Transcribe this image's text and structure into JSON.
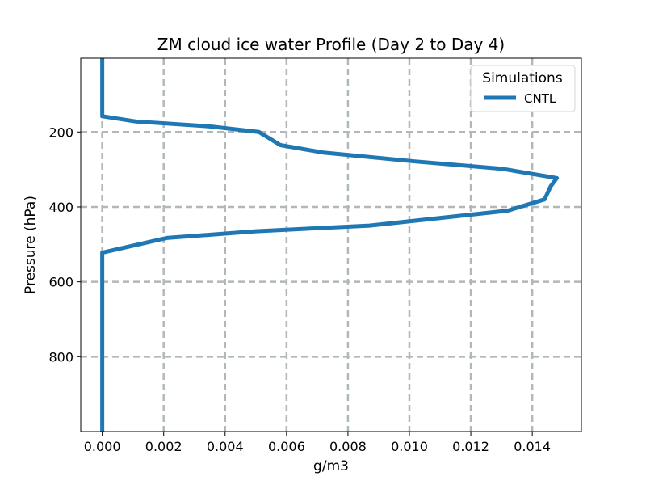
{
  "chart_data": {
    "type": "line",
    "title": "ZM cloud ice water Profile (Day 2 to Day 4)",
    "xlabel": "g/m3",
    "ylabel": "Pressure (hPa)",
    "xlim": [
      -0.0007,
      0.0156
    ],
    "ylim": [
      1000,
      3
    ],
    "y_inverted": true,
    "grid": true,
    "legend": {
      "title": "Simulations",
      "placement": "top-right"
    },
    "xticks": [
      "0.000",
      "0.002",
      "0.004",
      "0.006",
      "0.008",
      "0.010",
      "0.012",
      "0.014"
    ],
    "xtick_values": [
      0,
      0.002,
      0.004,
      0.006,
      0.008,
      0.01,
      0.012,
      0.014
    ],
    "yticks": [
      "200",
      "400",
      "600",
      "800"
    ],
    "ytick_values": [
      200,
      400,
      600,
      800
    ],
    "series": [
      {
        "name": "CNTL",
        "color": "#1f77b4",
        "x": [
          0,
          0,
          0,
          0.0011,
          0.0035,
          0.0051,
          0.0058,
          0.0072,
          0.0101,
          0.013,
          0.0148,
          0.0146,
          0.0144,
          0.0132,
          0.0087,
          0.005,
          0.0021,
          0.0,
          0.0,
          0.0,
          0.0
        ],
        "y": [
          3,
          60,
          158,
          172,
          185,
          200,
          235,
          255,
          278,
          298,
          323,
          345,
          380,
          410,
          450,
          465,
          483,
          522,
          560,
          800,
          1000
        ]
      }
    ]
  }
}
